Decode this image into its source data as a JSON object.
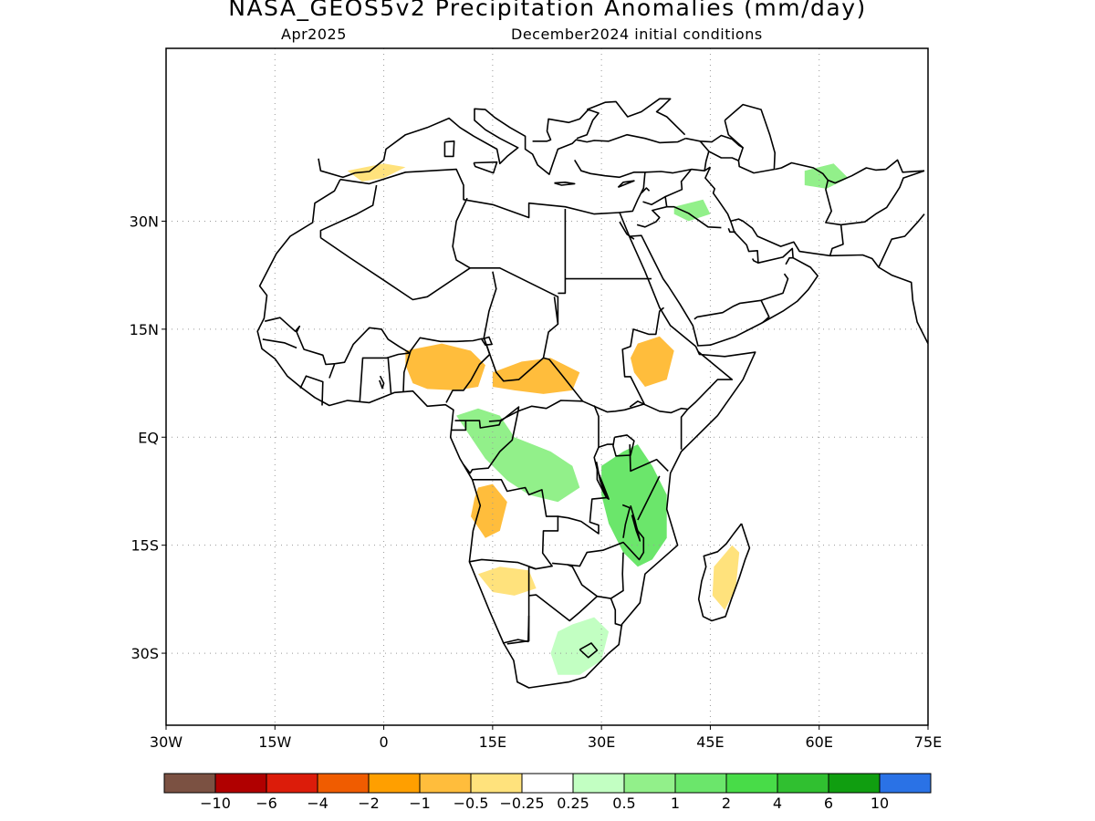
{
  "title": "NASA_GEOS5v2 Precipitation Anomalies (mm/day)",
  "subtitle_left": "Apr2025",
  "subtitle_right": "December2024 initial conditions",
  "map": {
    "projection": "lat-lon",
    "lon_range": [
      -30,
      75
    ],
    "lat_range": [
      -40,
      54
    ],
    "grid": true,
    "lon_ticks": [
      {
        "value": -30,
        "label": "30W"
      },
      {
        "value": -15,
        "label": "15W"
      },
      {
        "value": 0,
        "label": "0"
      },
      {
        "value": 15,
        "label": "15E"
      },
      {
        "value": 30,
        "label": "30E"
      },
      {
        "value": 45,
        "label": "45E"
      },
      {
        "value": 60,
        "label": "60E"
      },
      {
        "value": 75,
        "label": "75E"
      }
    ],
    "lat_ticks": [
      {
        "value": 30,
        "label": "30N"
      },
      {
        "value": 15,
        "label": "15N"
      },
      {
        "value": 0,
        "label": "EQ"
      },
      {
        "value": -15,
        "label": "15S"
      },
      {
        "value": -30,
        "label": "30S"
      }
    ]
  },
  "colorbar": {
    "colors": [
      "#7b5142",
      "#b00000",
      "#dc1c0a",
      "#f05c00",
      "#ff9f00",
      "#ffbd3c",
      "#ffe27c",
      "#ffffff",
      "#c2ffc2",
      "#92f08a",
      "#6be66b",
      "#48dc48",
      "#30c030",
      "#109e10",
      "#2a72e6"
    ],
    "labels": [
      "−10",
      "−6",
      "−4",
      "−2",
      "−1",
      "−0.5",
      "−0.25",
      "0.25",
      "0.5",
      "1",
      "2",
      "4",
      "6",
      "10"
    ]
  },
  "anomaly_patches": [
    {
      "category": "-0.5",
      "color": "#ffbd3c",
      "region": "Sahel west (Nigeria)"
    },
    {
      "category": "-0.5",
      "color": "#ffbd3c",
      "region": "Central African Republic"
    },
    {
      "category": "-0.5",
      "color": "#ffbd3c",
      "region": "Angola"
    },
    {
      "category": "-0.5",
      "color": "#ffbd3c",
      "region": "Ethiopia"
    },
    {
      "category": "-0.25",
      "color": "#ffe27c",
      "region": "Namibia / Botswana"
    },
    {
      "category": "-0.25",
      "color": "#ffe27c",
      "region": "Madagascar"
    },
    {
      "category": "-0.25",
      "color": "#ffe27c",
      "region": "Mediterranean / Iran"
    },
    {
      "category": "0.5",
      "color": "#92f08a",
      "region": "Congo Basin"
    },
    {
      "category": "0.5",
      "color": "#92f08a",
      "region": "Tanzania / Mozambique"
    },
    {
      "category": "0.5",
      "color": "#92f08a",
      "region": "South Africa"
    },
    {
      "category": "1",
      "color": "#6be66b",
      "region": "Lake Victoria"
    },
    {
      "category": "0.25",
      "color": "#c2ffc2",
      "region": "Gulf of Guinea coast"
    }
  ]
}
